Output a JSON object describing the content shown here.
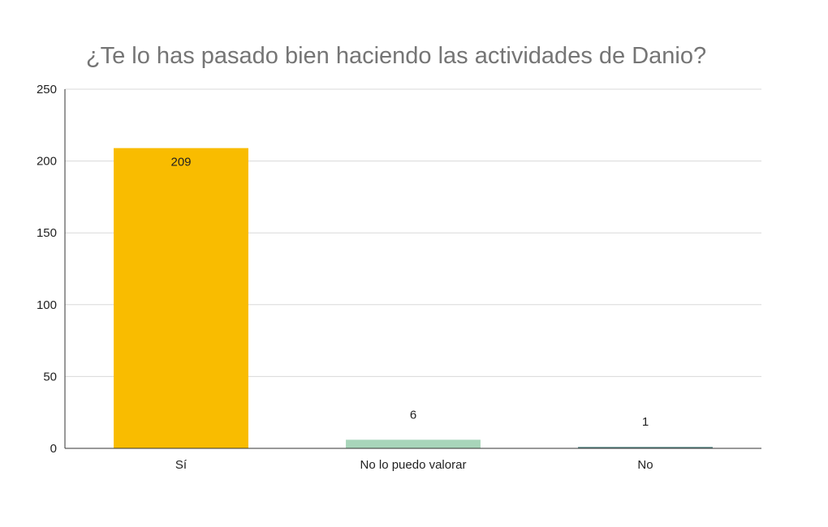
{
  "chart_data": {
    "type": "bar",
    "title": "¿Te lo has pasado bien haciendo las actividades de Danio?",
    "categories": [
      "Sí",
      "No lo puedo valorar",
      "No"
    ],
    "values": [
      209,
      6,
      1
    ],
    "data_labels": [
      "209",
      "6",
      "1"
    ],
    "colors": [
      "#F9BC00",
      "#A8D5BA",
      "#5C8B89"
    ],
    "ylim": [
      0,
      250
    ],
    "yticks": [
      0,
      50,
      100,
      150,
      200,
      250
    ],
    "grid": true,
    "legend": "none"
  }
}
